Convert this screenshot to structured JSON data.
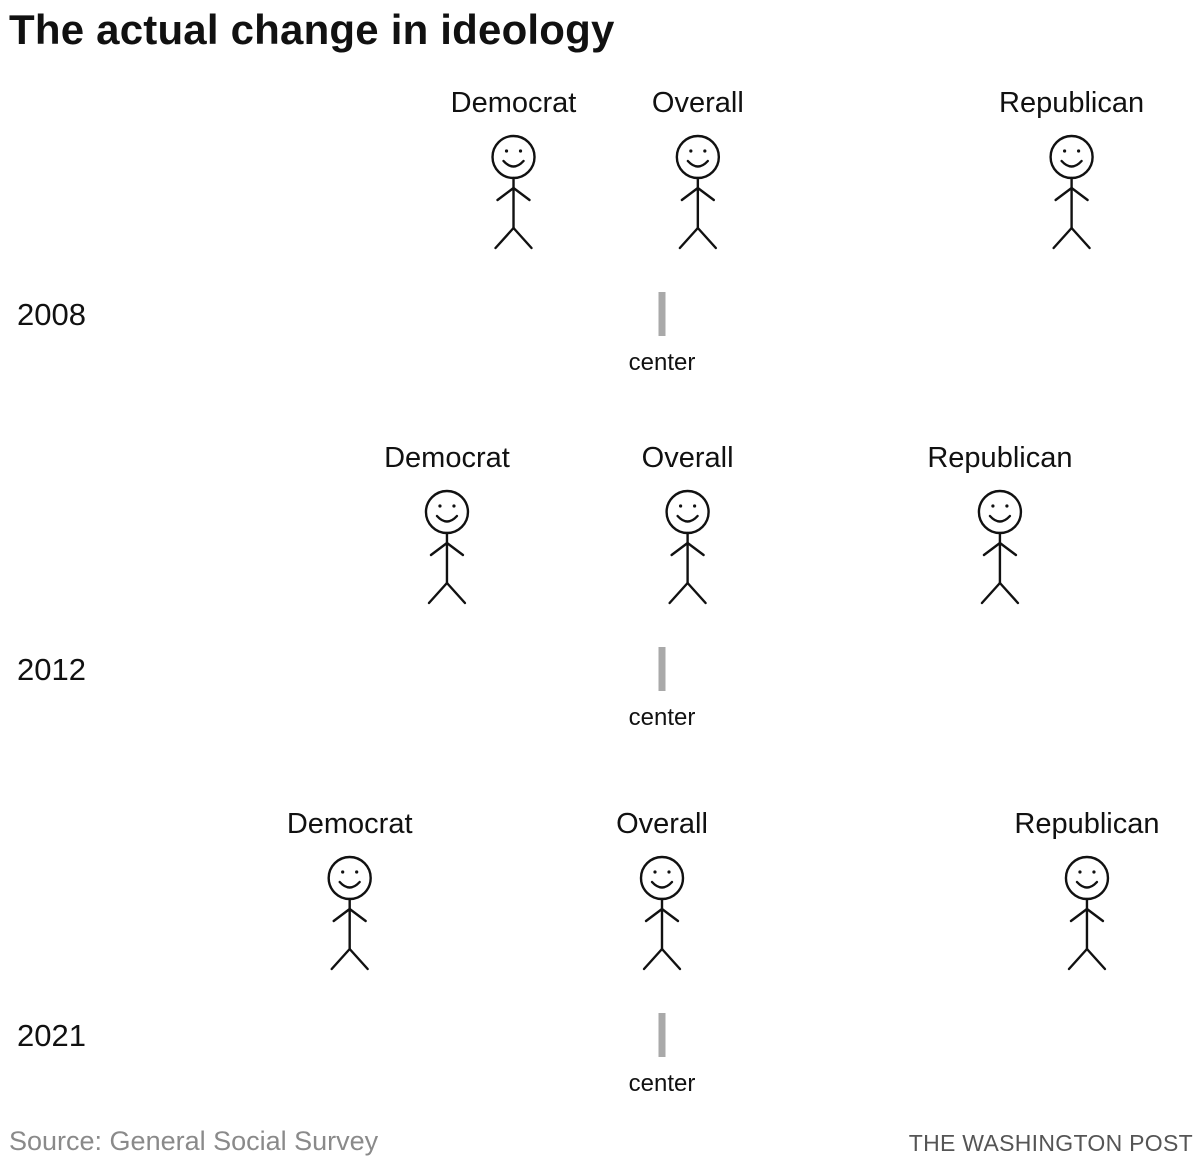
{
  "header": {
    "title": "The actual change in ideology"
  },
  "chart_data": {
    "type": "scatter",
    "title": "The actual change in ideology",
    "axis": {
      "center_label": "center",
      "xlim": [
        -1,
        1
      ],
      "center_value": 0
    },
    "colors": {
      "left": "#1f5fa8",
      "center": "#9aa3ab",
      "right": "#d42a2a",
      "tick": "#a9a9a9"
    },
    "rows": [
      {
        "year": "2008",
        "points": [
          {
            "label": "Democrat",
            "x": -0.29
          },
          {
            "label": "Overall",
            "x": 0.07
          },
          {
            "label": "Republican",
            "x": 0.8
          }
        ]
      },
      {
        "year": "2012",
        "points": [
          {
            "label": "Democrat",
            "x": -0.42
          },
          {
            "label": "Overall",
            "x": 0.05
          },
          {
            "label": "Republican",
            "x": 0.66
          }
        ]
      },
      {
        "year": "2021",
        "points": [
          {
            "label": "Democrat",
            "x": -0.61
          },
          {
            "label": "Overall",
            "x": 0.0
          },
          {
            "label": "Republican",
            "x": 0.83
          }
        ]
      }
    ]
  },
  "footer": {
    "source": "Source: General Social Survey",
    "credit": "THE WASHINGTON POST"
  }
}
